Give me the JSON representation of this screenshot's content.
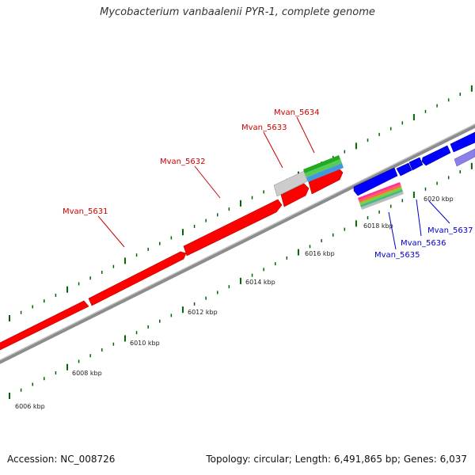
{
  "title": "Mycobacterium vanbaalenii PYR-1, complete genome",
  "footer": {
    "accession": "Accession: NC_008726",
    "summary": "Topology: circular; Length: 6,491,865 bp; Genes: 6,037"
  },
  "colors": {
    "forward_gene": "#ff0000",
    "reverse_gene": "#0000ff",
    "backbone": "#8c8c8c",
    "tick": "#006400",
    "label_forward": "#cc0000",
    "label_reverse": "#0000cc"
  },
  "scale_labels": [
    "6006 kbp",
    "6008 kbp",
    "6010 kbp",
    "6012 kbp",
    "6014 kbp",
    "6016 kbp",
    "6018 kbp",
    "6020 kbp"
  ],
  "genes": [
    {
      "name": "Mvan_5631",
      "strand": "forward"
    },
    {
      "name": "Mvan_5632",
      "strand": "forward"
    },
    {
      "name": "Mvan_5633",
      "strand": "forward"
    },
    {
      "name": "Mvan_5634",
      "strand": "forward"
    },
    {
      "name": "Mvan_5635",
      "strand": "reverse"
    },
    {
      "name": "Mvan_5636",
      "strand": "reverse"
    },
    {
      "name": "Mvan_5637",
      "strand": "reverse"
    }
  ]
}
